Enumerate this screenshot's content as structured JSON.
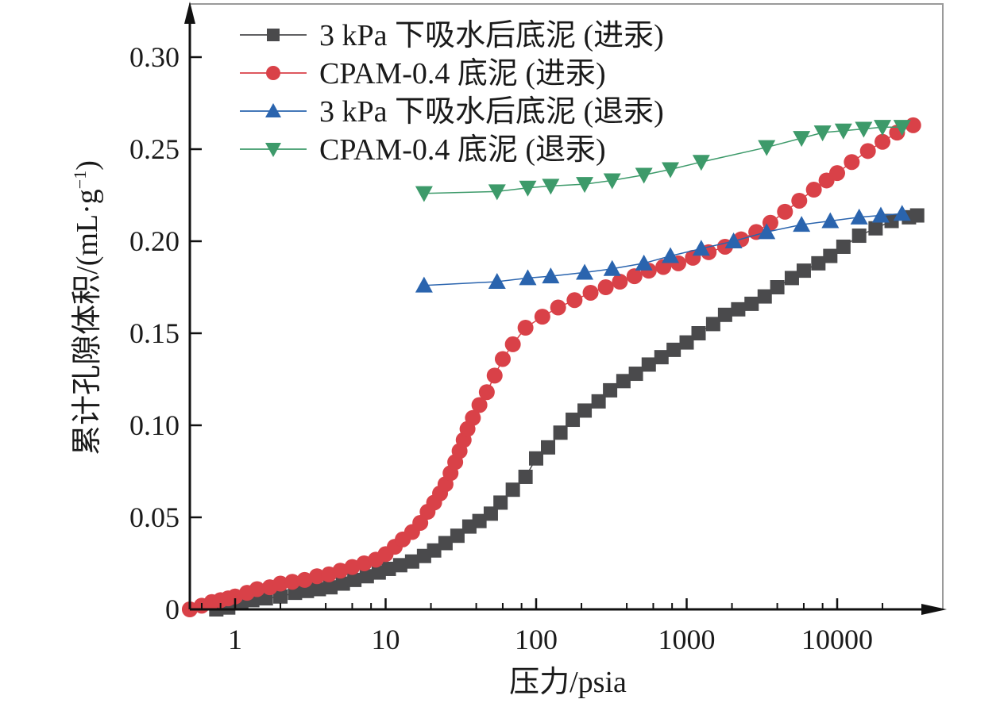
{
  "chart_data": {
    "type": "scatter",
    "title": "",
    "xlabel": "压力/psia",
    "ylabel": "累计孔隙体积/(mL·g",
    "ylabel_superscript": "−1",
    "ylabel_suffix": ")",
    "xscale": "log",
    "xlim": [
      0.5,
      38000
    ],
    "ylim": [
      0,
      0.32
    ],
    "x_ticks": [
      1,
      10,
      100,
      1000,
      10000
    ],
    "x_tick_labels": [
      "1",
      "10",
      "100",
      "1000",
      "10000"
    ],
    "y_ticks": [
      0,
      0.05,
      0.1,
      0.15,
      0.2,
      0.25,
      0.3
    ],
    "y_tick_labels": [
      "0",
      "0.05",
      "0.10",
      "0.15",
      "0.20",
      "0.25",
      "0.30"
    ],
    "grid": false,
    "legend_position": "top-left",
    "series": [
      {
        "name": "3 kPa 下吸水后底泥 (进汞)",
        "marker": "square",
        "color": "#4a4a4c",
        "x": [
          0.75,
          0.9,
          1.1,
          1.3,
          1.6,
          2.0,
          2.5,
          3.0,
          3.6,
          4.3,
          5.2,
          6.2,
          7.5,
          9.0,
          10.5,
          12.5,
          15,
          18,
          21,
          25,
          30,
          36,
          42,
          50,
          58,
          70,
          85,
          100,
          120,
          145,
          175,
          210,
          260,
          310,
          380,
          460,
          560,
          680,
          820,
          1000,
          1200,
          1500,
          1800,
          2200,
          2700,
          3300,
          4000,
          5000,
          6000,
          7500,
          9000,
          11000,
          14000,
          18000,
          23000,
          30000,
          34000
        ],
        "y": [
          0.0,
          0.001,
          0.004,
          0.005,
          0.006,
          0.007,
          0.009,
          0.01,
          0.011,
          0.012,
          0.014,
          0.016,
          0.018,
          0.02,
          0.022,
          0.024,
          0.026,
          0.029,
          0.032,
          0.036,
          0.04,
          0.045,
          0.048,
          0.052,
          0.058,
          0.065,
          0.072,
          0.082,
          0.088,
          0.096,
          0.103,
          0.108,
          0.113,
          0.119,
          0.124,
          0.128,
          0.133,
          0.137,
          0.141,
          0.145,
          0.15,
          0.155,
          0.16,
          0.163,
          0.166,
          0.17,
          0.175,
          0.18,
          0.184,
          0.188,
          0.192,
          0.197,
          0.203,
          0.207,
          0.211,
          0.213,
          0.214
        ]
      },
      {
        "name": "CPAM-0.4 底泥 (进汞)",
        "marker": "circle",
        "color": "#d94148",
        "x": [
          0.5,
          0.6,
          0.7,
          0.8,
          0.9,
          1.0,
          1.2,
          1.4,
          1.7,
          2.0,
          2.4,
          2.9,
          3.5,
          4.2,
          5.0,
          6.0,
          7.2,
          8.6,
          10,
          11.5,
          13,
          15,
          17,
          19,
          21,
          23,
          25,
          27,
          29,
          31,
          33,
          35,
          38,
          42,
          47,
          53,
          60,
          70,
          85,
          110,
          140,
          180,
          230,
          290,
          360,
          450,
          560,
          700,
          880,
          1100,
          1400,
          1800,
          2300,
          2900,
          3600,
          4500,
          5600,
          7000,
          8500,
          10000,
          12500,
          16000,
          20000,
          25000,
          32000
        ],
        "y": [
          0.0,
          0.002,
          0.004,
          0.005,
          0.006,
          0.007,
          0.009,
          0.011,
          0.012,
          0.014,
          0.015,
          0.016,
          0.018,
          0.019,
          0.021,
          0.023,
          0.025,
          0.027,
          0.03,
          0.034,
          0.038,
          0.042,
          0.047,
          0.053,
          0.058,
          0.063,
          0.068,
          0.074,
          0.08,
          0.086,
          0.092,
          0.098,
          0.104,
          0.111,
          0.118,
          0.127,
          0.136,
          0.144,
          0.153,
          0.159,
          0.164,
          0.168,
          0.172,
          0.175,
          0.178,
          0.181,
          0.184,
          0.186,
          0.188,
          0.191,
          0.194,
          0.197,
          0.201,
          0.205,
          0.21,
          0.216,
          0.222,
          0.228,
          0.233,
          0.237,
          0.243,
          0.249,
          0.254,
          0.259,
          0.263
        ]
      },
      {
        "name": "3 kPa 下吸水后底泥 (退汞)",
        "marker": "triangle-up",
        "color": "#2a64ae",
        "x": [
          18,
          55,
          88,
          125,
          210,
          320,
          520,
          780,
          1250,
          2050,
          3400,
          5800,
          9000,
          14000,
          19500,
          27000
        ],
        "y": [
          0.176,
          0.178,
          0.18,
          0.181,
          0.183,
          0.185,
          0.188,
          0.192,
          0.196,
          0.2,
          0.205,
          0.209,
          0.211,
          0.213,
          0.214,
          0.215
        ]
      },
      {
        "name": "CPAM-0.4 底泥 (退汞)",
        "marker": "triangle-down",
        "color": "#3d9a6a",
        "x": [
          18,
          55,
          88,
          125,
          210,
          320,
          520,
          780,
          1250,
          3400,
          5800,
          8000,
          11000,
          15000,
          20000,
          27000
        ],
        "y": [
          0.226,
          0.227,
          0.229,
          0.23,
          0.231,
          0.233,
          0.236,
          0.239,
          0.243,
          0.251,
          0.256,
          0.259,
          0.26,
          0.261,
          0.262,
          0.262
        ]
      }
    ]
  }
}
